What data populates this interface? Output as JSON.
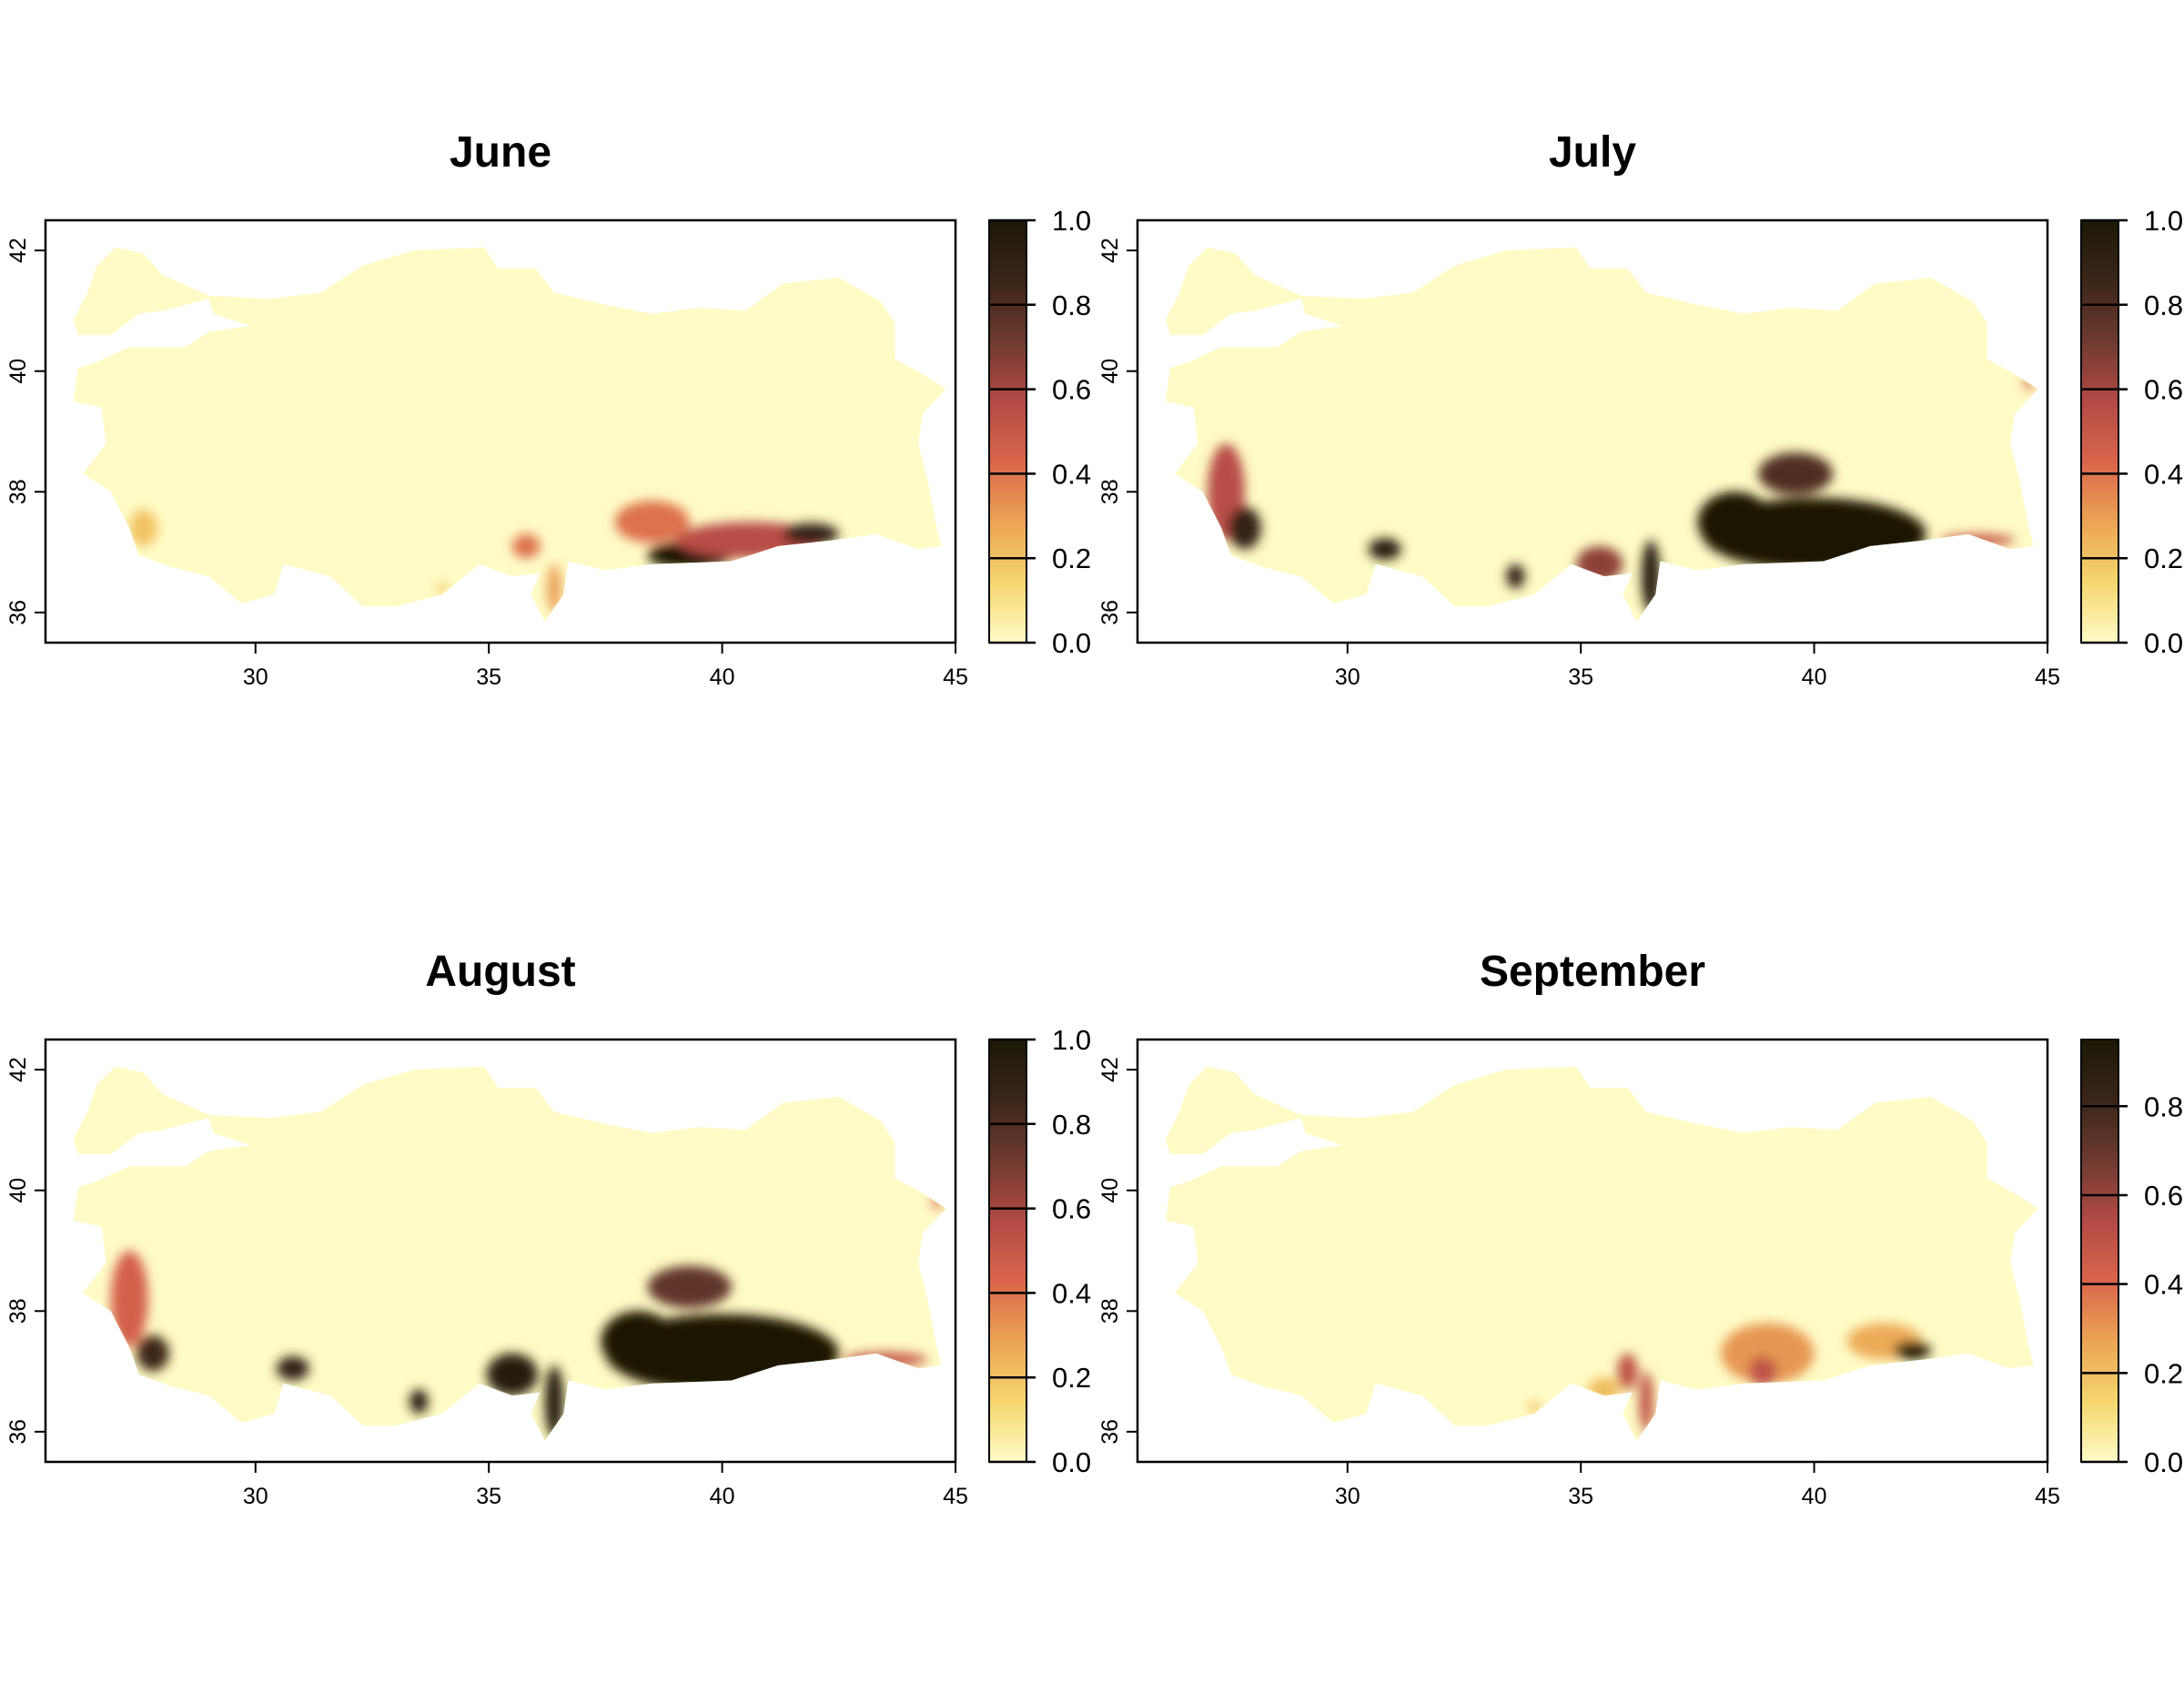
{
  "chart_data": {
    "type": "heatmap",
    "xlim": [
      25.5,
      45
    ],
    "ylim": [
      35.5,
      42.5
    ],
    "x_ticks": [
      "30",
      "35",
      "40",
      "45"
    ],
    "y_ticks": [
      "36",
      "38",
      "40",
      "42"
    ],
    "color_ramp": [
      "#FFFBC8",
      "#F5D66E",
      "#EBA455",
      "#D9654B",
      "#B24A45",
      "#6E3A30",
      "#3A2618",
      "#1C1805"
    ],
    "land_color": "#FFFBC6",
    "panels": [
      {
        "title": "June",
        "colorbar_range": [
          0,
          1.0
        ],
        "colorbar_ticks": [
          "0.0",
          "0.2",
          "0.4",
          "0.6",
          "0.8",
          "1.0"
        ]
      },
      {
        "title": "July",
        "colorbar_range": [
          0,
          1.0
        ],
        "colorbar_ticks": [
          "0.0",
          "0.2",
          "0.4",
          "0.6",
          "0.8",
          "1.0"
        ]
      },
      {
        "title": "August",
        "colorbar_range": [
          0,
          1.0
        ],
        "colorbar_ticks": [
          "0.0",
          "0.2",
          "0.4",
          "0.6",
          "0.8",
          "1.0"
        ]
      },
      {
        "title": "September",
        "colorbar_range": [
          0,
          0.95
        ],
        "colorbar_ticks": [
          "0.0",
          "0.2",
          "0.4",
          "0.6",
          "0.8"
        ]
      }
    ]
  }
}
